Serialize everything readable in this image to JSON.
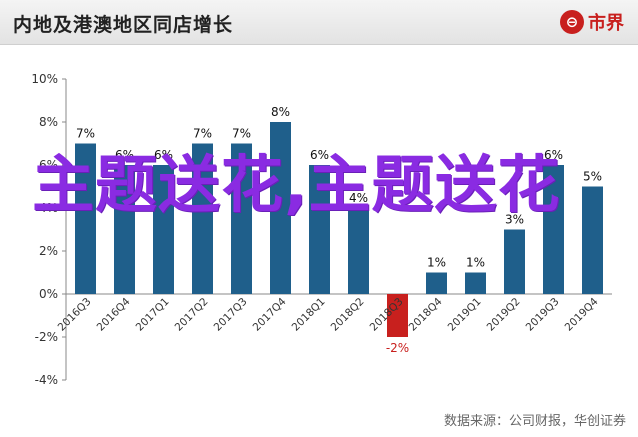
{
  "header": {
    "title": "内地及港澳地区同店增长",
    "logo_mark": "⊖",
    "logo_text": "市界"
  },
  "watermark": {
    "text": "主题送花,主题送花"
  },
  "source": "数据来源：公司财报，华创证券",
  "chart_data": {
    "type": "bar",
    "title": "内地及港澳地区同店增长",
    "categories": [
      "2016Q3",
      "2016Q4",
      "2017Q1",
      "2017Q2",
      "2017Q3",
      "2017Q4",
      "2018Q1",
      "2018Q2",
      "2018Q3",
      "2018Q4",
      "2019Q1",
      "2019Q2",
      "2019Q3",
      "2019Q4"
    ],
    "values": [
      7,
      6,
      6,
      7,
      7,
      8,
      6,
      4,
      -2,
      1,
      1,
      3,
      6,
      5
    ],
    "value_labels": [
      "7%",
      "6%",
      "6%",
      "7%",
      "7%",
      "8%",
      "6%",
      "4%",
      "-2%",
      "1%",
      "1%",
      "3%",
      "6%",
      "5%"
    ],
    "y_ticks": [
      "-4%",
      "-2%",
      "0%",
      "2%",
      "4%",
      "6%",
      "8%",
      "10%"
    ],
    "y_tick_values": [
      -4,
      -2,
      0,
      2,
      4,
      6,
      8,
      10
    ],
    "ylim": [
      -4,
      10
    ],
    "colors": {
      "positive": "#1f5f8b",
      "negative": "#c8201e",
      "negative_label": "#c8201e"
    },
    "grid": false,
    "xlabel": "",
    "ylabel": ""
  }
}
